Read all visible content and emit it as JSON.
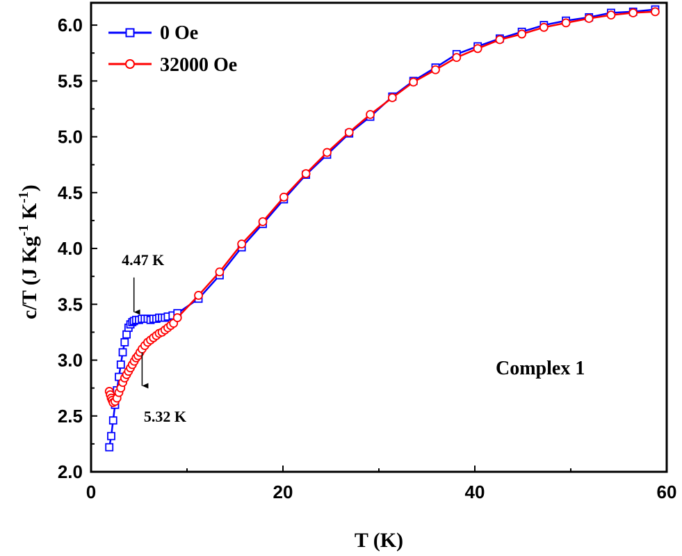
{
  "chart_data": {
    "type": "line",
    "xlabel": "T (K)",
    "ylabel": "c/T (J Kg⁻¹ K⁻¹)",
    "ylabel_parts": [
      "c/T (J Kg",
      "-1",
      " K",
      "-1",
      ")"
    ],
    "xlim": [
      0,
      60
    ],
    "ylim": [
      2.0,
      6.2
    ],
    "x_ticks": [
      "0",
      "20",
      "40",
      "60"
    ],
    "y_ticks": [
      "2.0",
      "2.5",
      "3.0",
      "3.5",
      "4.0",
      "4.5",
      "5.0",
      "5.5",
      "6.0"
    ],
    "grid": false,
    "legend_position": "top-left",
    "series": [
      {
        "name": "0 Oe",
        "color": "#0000ff",
        "marker": "square",
        "x": [
          1.9,
          2.1,
          2.3,
          2.5,
          2.7,
          2.9,
          3.1,
          3.3,
          3.5,
          3.7,
          3.9,
          4.1,
          4.3,
          4.47,
          4.7,
          5.0,
          5.3,
          5.6,
          5.9,
          6.2,
          6.5,
          6.8,
          7.1,
          7.4,
          7.7,
          8.0,
          8.5,
          9.0,
          11.2,
          13.4,
          15.7,
          17.9,
          20.1,
          22.4,
          24.6,
          26.9,
          29.1,
          31.4,
          33.6,
          35.9,
          38.1,
          40.3,
          42.6,
          44.9,
          47.2,
          49.5,
          51.9,
          54.2,
          56.5,
          58.8
        ],
        "y": [
          2.22,
          2.32,
          2.46,
          2.6,
          2.73,
          2.85,
          2.96,
          3.07,
          3.16,
          3.23,
          3.29,
          3.32,
          3.34,
          3.35,
          3.36,
          3.36,
          3.37,
          3.37,
          3.37,
          3.36,
          3.37,
          3.37,
          3.38,
          3.38,
          3.38,
          3.39,
          3.4,
          3.42,
          3.55,
          3.76,
          4.01,
          4.22,
          4.44,
          4.66,
          4.84,
          5.03,
          5.18,
          5.36,
          5.5,
          5.62,
          5.74,
          5.81,
          5.88,
          5.94,
          6.0,
          6.04,
          6.07,
          6.11,
          6.12,
          6.14
        ]
      },
      {
        "name": "32000 Oe",
        "color": "#ff0000",
        "marker": "circle",
        "x": [
          1.9,
          2.0,
          2.1,
          2.2,
          2.3,
          2.5,
          2.7,
          2.9,
          3.1,
          3.3,
          3.5,
          3.7,
          3.9,
          4.1,
          4.3,
          4.5,
          4.7,
          4.9,
          5.1,
          5.32,
          5.6,
          5.9,
          6.2,
          6.5,
          6.8,
          7.1,
          7.4,
          7.7,
          8.0,
          8.3,
          8.6,
          9.0,
          11.2,
          13.4,
          15.7,
          17.9,
          20.1,
          22.4,
          24.6,
          26.9,
          29.1,
          31.4,
          33.6,
          35.9,
          38.1,
          40.3,
          42.6,
          44.9,
          47.2,
          49.5,
          51.9,
          54.2,
          56.5,
          58.8
        ],
        "y": [
          2.72,
          2.69,
          2.66,
          2.64,
          2.62,
          2.63,
          2.66,
          2.71,
          2.75,
          2.8,
          2.84,
          2.87,
          2.9,
          2.93,
          2.96,
          2.99,
          3.02,
          3.04,
          3.07,
          3.1,
          3.13,
          3.16,
          3.18,
          3.2,
          3.22,
          3.24,
          3.25,
          3.27,
          3.29,
          3.31,
          3.33,
          3.38,
          3.58,
          3.79,
          4.04,
          4.24,
          4.46,
          4.67,
          4.86,
          5.04,
          5.2,
          5.35,
          5.49,
          5.6,
          5.71,
          5.79,
          5.87,
          5.92,
          5.98,
          6.02,
          6.06,
          6.09,
          6.11,
          6.12
        ]
      }
    ],
    "annotations": [
      {
        "text": "4.47 K",
        "arrow_x": 4.47,
        "arrow_from_y": 3.74,
        "arrow_to_y": 3.43,
        "text_x": 3.2,
        "text_y": 3.85
      },
      {
        "text": "5.32 K",
        "arrow_x": 5.32,
        "arrow_from_y": 3.07,
        "arrow_to_y": 2.77,
        "text_x": 5.5,
        "text_y": 2.45
      }
    ],
    "label": "Complex 1"
  }
}
